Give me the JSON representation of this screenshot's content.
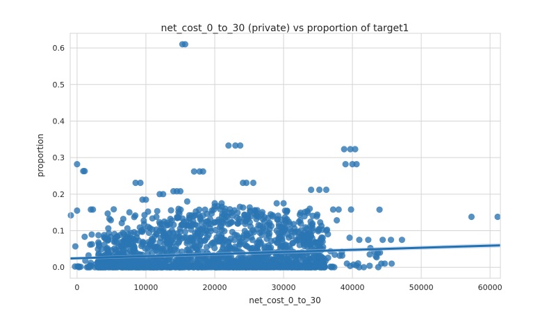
{
  "chart_data": {
    "type": "scatter",
    "title": "net_cost_0_to_30 (private) vs proportion of target1",
    "xlabel": "net_cost_0_to_30",
    "ylabel": "proportion",
    "xlim": [
      -1000,
      61500
    ],
    "ylim": [
      -0.03,
      0.64
    ],
    "xticks": [
      0,
      10000,
      20000,
      30000,
      40000,
      50000,
      60000
    ],
    "yticks": [
      0.0,
      0.1,
      0.2,
      0.3,
      0.4,
      0.5,
      0.6
    ],
    "xtick_labels": [
      "0",
      "10000",
      "20000",
      "30000",
      "40000",
      "50000",
      "60000"
    ],
    "ytick_labels": [
      "0.0",
      "0.1",
      "0.2",
      "0.3",
      "0.4",
      "0.5",
      "0.6"
    ],
    "grid": true,
    "legend": "none",
    "point_color": "#2a76b3",
    "line_color": "#2070b2",
    "band_color": "#a9c4de",
    "regression": {
      "x": [
        -1000,
        61500
      ],
      "y": [
        0.024,
        0.06
      ]
    },
    "notable_points": [
      {
        "x": 15300,
        "y": 0.61
      },
      {
        "x": 15700,
        "y": 0.61
      },
      {
        "x": 22000,
        "y": 0.333
      },
      {
        "x": 23000,
        "y": 0.333
      },
      {
        "x": 23700,
        "y": 0.333
      },
      {
        "x": 38800,
        "y": 0.323
      },
      {
        "x": 39700,
        "y": 0.323
      },
      {
        "x": 40400,
        "y": 0.323
      },
      {
        "x": 0,
        "y": 0.282
      },
      {
        "x": 900,
        "y": 0.263
      },
      {
        "x": 1100,
        "y": 0.263
      },
      {
        "x": 39000,
        "y": 0.282
      },
      {
        "x": 40000,
        "y": 0.282
      },
      {
        "x": 40600,
        "y": 0.282
      },
      {
        "x": 17000,
        "y": 0.262
      },
      {
        "x": 17800,
        "y": 0.262
      },
      {
        "x": 18300,
        "y": 0.262
      },
      {
        "x": 8500,
        "y": 0.231
      },
      {
        "x": 9200,
        "y": 0.231
      },
      {
        "x": 24100,
        "y": 0.231
      },
      {
        "x": 24600,
        "y": 0.231
      },
      {
        "x": 25600,
        "y": 0.231
      },
      {
        "x": 34000,
        "y": 0.212
      },
      {
        "x": 35200,
        "y": 0.212
      },
      {
        "x": 36200,
        "y": 0.212
      },
      {
        "x": 12000,
        "y": 0.2
      },
      {
        "x": 12500,
        "y": 0.2
      },
      {
        "x": 14000,
        "y": 0.208
      },
      {
        "x": 14500,
        "y": 0.208
      },
      {
        "x": 15000,
        "y": 0.208
      },
      {
        "x": -900,
        "y": 0.142
      },
      {
        "x": 0,
        "y": 0.155
      },
      {
        "x": 2000,
        "y": 0.158
      },
      {
        "x": 2300,
        "y": 0.158
      },
      {
        "x": 57300,
        "y": 0.138
      },
      {
        "x": 61100,
        "y": 0.138
      },
      {
        "x": 44400,
        "y": 0.075
      },
      {
        "x": 45600,
        "y": 0.075
      },
      {
        "x": 47200,
        "y": 0.075
      },
      {
        "x": 42300,
        "y": 0.075
      },
      {
        "x": 41000,
        "y": 0.075
      },
      {
        "x": 43700,
        "y": 0.04
      },
      {
        "x": 44000,
        "y": 0.04
      },
      {
        "x": 44700,
        "y": 0.01
      },
      {
        "x": 45700,
        "y": 0.01
      },
      {
        "x": 44200,
        "y": 0.01
      },
      {
        "x": 37200,
        "y": 0.158
      },
      {
        "x": 38000,
        "y": 0.158
      },
      {
        "x": 39800,
        "y": 0.158
      },
      {
        "x": 29000,
        "y": 0.175
      },
      {
        "x": 30000,
        "y": 0.175
      },
      {
        "x": 33800,
        "y": 0.16
      },
      {
        "x": 20000,
        "y": 0.175
      },
      {
        "x": 21000,
        "y": 0.175
      },
      {
        "x": 16000,
        "y": 0.18
      },
      {
        "x": 9500,
        "y": 0.185
      },
      {
        "x": 10000,
        "y": 0.185
      }
    ]
  }
}
